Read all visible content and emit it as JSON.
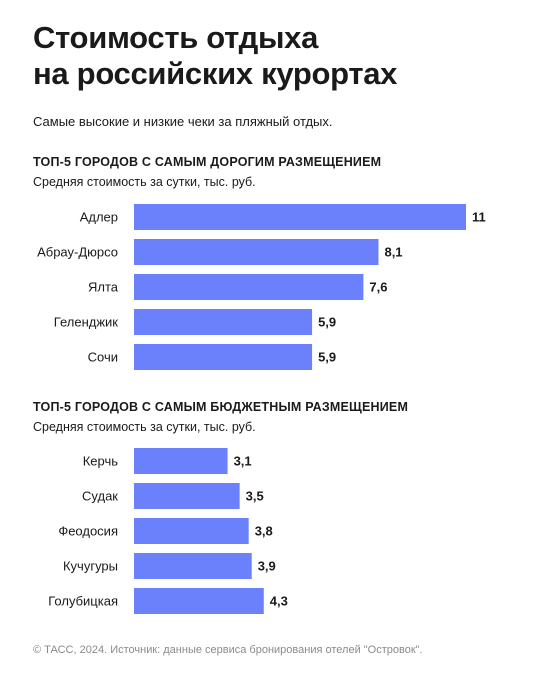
{
  "header": {
    "title_line1": "Стоимость отдыха",
    "title_line2": "на российских курортах",
    "subtitle": "Самые высокие и низкие чеки за пляжный отдых."
  },
  "sections": [
    {
      "title": "ТОП-5 ГОРОДОВ С САМЫМ ДОРОГИМ РАЗМЕЩЕНИЕМ",
      "unit": "Средняя стоимость за сутки, тыс. руб."
    },
    {
      "title": "ТОП-5 ГОРОДОВ С САМЫМ БЮДЖЕТНЫМ РАЗМЕЩЕНИЕМ",
      "unit": "Средняя стоимость за сутки, тыс. руб."
    }
  ],
  "footer": {
    "source": "© ТАСС, 2024. Источник: данные сервиса бронирования отелей \"Островок\"."
  },
  "colors": {
    "bar": "#6b80fb",
    "text": "#1a1a1a",
    "muted": "#8a8a8a"
  },
  "chart_data": [
    {
      "type": "bar",
      "orientation": "horizontal",
      "title": "ТОП-5 ГОРОДОВ С САМЫМ ДОРОГИМ РАЗМЕЩЕНИЕМ",
      "xlabel": "Средняя стоимость за сутки, тыс. руб.",
      "categories": [
        "Адлер",
        "Абрау-Дюрсо",
        "Ялта",
        "Геленджик",
        "Сочи"
      ],
      "values": [
        11,
        8.1,
        7.6,
        5.9,
        5.9
      ],
      "value_labels": [
        "11",
        "8,1",
        "7,6",
        "5,9",
        "5,9"
      ],
      "xlim": [
        0,
        11
      ],
      "grid": false
    },
    {
      "type": "bar",
      "orientation": "horizontal",
      "title": "ТОП-5 ГОРОДОВ С САМЫМ БЮДЖЕТНЫМ РАЗМЕЩЕНИЕМ",
      "xlabel": "Средняя стоимость за сутки, тыс. руб.",
      "categories": [
        "Керчь",
        "Судак",
        "Феодосия",
        "Кучугуры",
        "Голубицкая"
      ],
      "values": [
        3.1,
        3.5,
        3.8,
        3.9,
        4.3
      ],
      "value_labels": [
        "3,1",
        "3,5",
        "3,8",
        "3,9",
        "4,3"
      ],
      "xlim": [
        0,
        11
      ],
      "grid": false
    }
  ]
}
